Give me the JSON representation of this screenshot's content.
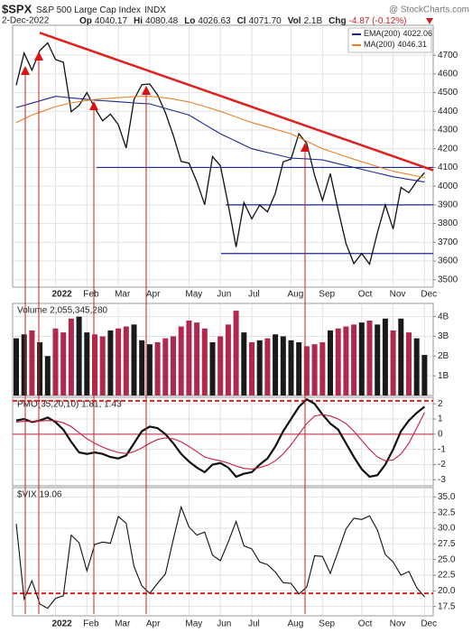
{
  "header": {
    "symbol": "$SPX",
    "name": "S&P 500 Large Cap Index",
    "exchange": "INDX",
    "source": "@ StockCharts.com",
    "date": "2-Dec-2022",
    "fields": [
      {
        "label": "Op",
        "value": "4040.17"
      },
      {
        "label": "Hi",
        "value": "4080.48"
      },
      {
        "label": "Lo",
        "value": "4026.63"
      },
      {
        "label": "Cl",
        "value": "4071.70"
      },
      {
        "label": "Vol",
        "value": "2.1B"
      },
      {
        "label": "Chg",
        "value": "-4.87 (-0.12%)"
      }
    ]
  },
  "chart_data": [
    {
      "type": "line",
      "categories": [
        null,
        null,
        null,
        null,
        null,
        "2022",
        null,
        null,
        null,
        "Feb",
        null,
        null,
        null,
        "Mar",
        null,
        null,
        null,
        "Apr",
        null,
        null,
        null,
        null,
        "May",
        null,
        null,
        null,
        "Jun",
        null,
        null,
        null,
        "Jul",
        null,
        null,
        null,
        null,
        "Aug",
        null,
        null,
        null,
        "Sep",
        null,
        null,
        null,
        null,
        "Oct",
        null,
        null,
        null,
        "Nov",
        null,
        null,
        null,
        "Dec"
      ],
      "ylim": [
        3460,
        4860
      ],
      "yticks": [
        3500,
        3600,
        3700,
        3800,
        3900,
        4000,
        4100,
        4200,
        4300,
        4400,
        4500,
        4600,
        4700
      ],
      "series": [
        {
          "name": "",
          "color": "#111111",
          "values": [
            4540,
            4712,
            4620,
            4725,
            4766,
            4677,
            4662,
            4398,
            4432,
            4500,
            4418,
            4349,
            4385,
            4329,
            4204,
            4463,
            4543,
            4546,
            4488,
            4392,
            4272,
            4132,
            4123,
            4024,
            3901,
            4158,
            4109,
            3901,
            3675,
            3912,
            3825,
            3899,
            3863,
            3962,
            4130,
            4145,
            4280,
            4228,
            4058,
            3924,
            4067,
            3873,
            3693,
            3586,
            3640,
            3583,
            3752,
            3901,
            3771,
            3993,
            3965,
            4026,
            4071.7
          ]
        },
        {
          "name": "EMA(200)",
          "color": "#1a2a8c",
          "values": [
            4420,
            4432,
            4444,
            4456,
            4468,
            4480,
            4476,
            4472,
            4468,
            4464,
            4460,
            4457,
            4454,
            4451,
            4448,
            4445,
            4442,
            4440,
            4428,
            4416,
            4404,
            4392,
            4380,
            4355,
            4330,
            4305,
            4280,
            4260,
            4240,
            4220,
            4200,
            4190,
            4180,
            4170,
            4160,
            4150,
            4148,
            4146,
            4143,
            4140,
            4130,
            4120,
            4110,
            4100,
            4090,
            4080,
            4070,
            4060,
            4050,
            4043,
            4036,
            4029,
            4022.06
          ]
        },
        {
          "name": "MA(200)",
          "color": "#e8822a",
          "values": [
            4340,
            4360,
            4380,
            4395,
            4410,
            4425,
            4435,
            4445,
            4452,
            4458,
            4463,
            4467,
            4470,
            4473,
            4476,
            4478,
            4480,
            4480,
            4476,
            4472,
            4466,
            4458,
            4450,
            4438,
            4426,
            4413,
            4400,
            4385,
            4370,
            4355,
            4340,
            4328,
            4316,
            4304,
            4292,
            4280,
            4260,
            4240,
            4220,
            4200,
            4186,
            4172,
            4158,
            4144,
            4130,
            4118,
            4105,
            4092,
            4080,
            4071,
            4063,
            4054,
            4046.31
          ]
        }
      ],
      "trendline": {
        "color": "#e02020",
        "values": [
          4820,
          4085
        ]
      },
      "support_lines": {
        "color": "#1a2a8c",
        "values": [
          4100,
          3900,
          3640
        ]
      }
    },
    {
      "type": "bar",
      "title": "Volume 2,055,345,280",
      "up_color": "#1a1a1a",
      "down_color": "#b0284c",
      "ylim": [
        0,
        4670000000
      ],
      "yticks": [
        {
          "value": 1000000000,
          "label": "1B"
        },
        {
          "value": 2000000000,
          "label": "2B"
        },
        {
          "value": 3000000000,
          "label": "3B"
        },
        {
          "value": 4000000000,
          "label": "4B"
        }
      ],
      "values": [
        2900000000,
        3100000000,
        3300000000,
        2700000000,
        2000000000,
        3400000000,
        3200000000,
        3900000000,
        4000000000,
        3200000000,
        3100000000,
        3000000000,
        3300000000,
        3400000000,
        3500000000,
        3600000000,
        2800000000,
        2600000000,
        2700000000,
        2900000000,
        3000000000,
        3500000000,
        3800000000,
        3700000000,
        3400000000,
        2700000000,
        3000000000,
        3600000000,
        4300000000,
        3200000000,
        2700000000,
        2800000000,
        2900000000,
        3100000000,
        3000000000,
        2800000000,
        2700000000,
        2500000000,
        2600000000,
        2700000000,
        3300000000,
        3400000000,
        3500000000,
        3600000000,
        3700000000,
        3800000000,
        3600000000,
        3900000000,
        3300000000,
        3900000000,
        3200000000,
        2900000000,
        2055345280
      ]
    },
    {
      "type": "line",
      "title": "PMO(35,20,10) 1.81, 1.43",
      "ylim": [
        -3.4,
        2.43
      ],
      "yticks": [
        -3,
        -2,
        -1,
        0,
        1,
        2
      ],
      "center_line": {
        "color": "#c02040",
        "value": 0
      },
      "dashed_line": {
        "color": "#e02020",
        "value": 2.2
      },
      "series": [
        {
          "name": "",
          "color": "#111111",
          "values": [
            0.9,
            1.0,
            0.8,
            0.9,
            1.1,
            0.8,
            0.3,
            -0.5,
            -1.2,
            -1.3,
            -1.2,
            -1.3,
            -1.5,
            -1.6,
            -1.4,
            -0.6,
            0.2,
            0.5,
            0.4,
            0.0,
            -0.6,
            -1.3,
            -1.8,
            -2.2,
            -2.5,
            -2.0,
            -1.9,
            -2.2,
            -2.8,
            -2.6,
            -2.5,
            -2.0,
            -1.6,
            -0.8,
            0.2,
            1.0,
            1.8,
            2.3,
            2.0,
            1.3,
            0.7,
            0.3,
            -0.6,
            -1.5,
            -2.3,
            -2.8,
            -2.7,
            -2.0,
            -1.0,
            0.2,
            0.9,
            1.4,
            1.81
          ]
        },
        {
          "name": "",
          "color": "#c02040",
          "values": [
            0.8,
            0.85,
            0.85,
            0.87,
            0.9,
            0.88,
            0.75,
            0.5,
            0.1,
            -0.3,
            -0.6,
            -0.85,
            -1.05,
            -1.2,
            -1.28,
            -1.15,
            -0.9,
            -0.6,
            -0.35,
            -0.25,
            -0.3,
            -0.5,
            -0.8,
            -1.15,
            -1.5,
            -1.65,
            -1.75,
            -1.9,
            -2.1,
            -2.25,
            -2.3,
            -2.2,
            -2.05,
            -1.75,
            -1.3,
            -0.7,
            0.0,
            0.7,
            1.2,
            1.3,
            1.2,
            1.0,
            0.7,
            0.2,
            -0.4,
            -1.0,
            -1.5,
            -1.75,
            -1.7,
            -1.3,
            -0.6,
            0.4,
            1.43
          ]
        }
      ]
    },
    {
      "type": "line",
      "title": "$VIX 19.06",
      "ylim": [
        16,
        36.5
      ],
      "yticks": [
        {
          "value": 17.5,
          "label": "17.5"
        },
        {
          "value": 20,
          "label": "20.0"
        },
        {
          "value": 22.5,
          "label": "22.5"
        },
        {
          "value": 25,
          "label": "25.0"
        },
        {
          "value": 27.5,
          "label": "27.5"
        },
        {
          "value": 30,
          "label": "30.0"
        },
        {
          "value": 32.5,
          "label": "32.5"
        },
        {
          "value": 35,
          "label": "35.0"
        }
      ],
      "dashed_line": {
        "color": "#e02020",
        "value": 19.6
      },
      "series": [
        {
          "name": "",
          "color": "#111111",
          "values": [
            30.7,
            18.7,
            21.6,
            17.9,
            17.2,
            18.8,
            19.2,
            28.9,
            27.7,
            23.2,
            27.4,
            27.8,
            27.6,
            31.9,
            30.8,
            23.9,
            20.8,
            19.6,
            21.2,
            22.7,
            28.2,
            33.4,
            30.2,
            28.9,
            29.4,
            25.7,
            24.8,
            27.8,
            31.1,
            27.2,
            26.7,
            24.6,
            24.2,
            23.0,
            21.3,
            21.2,
            19.5,
            20.6,
            25.6,
            25.5,
            22.8,
            26.3,
            29.9,
            31.6,
            31.4,
            32.0,
            29.7,
            25.8,
            24.6,
            22.5,
            23.1,
            20.5,
            19.06
          ]
        }
      ]
    }
  ]
}
